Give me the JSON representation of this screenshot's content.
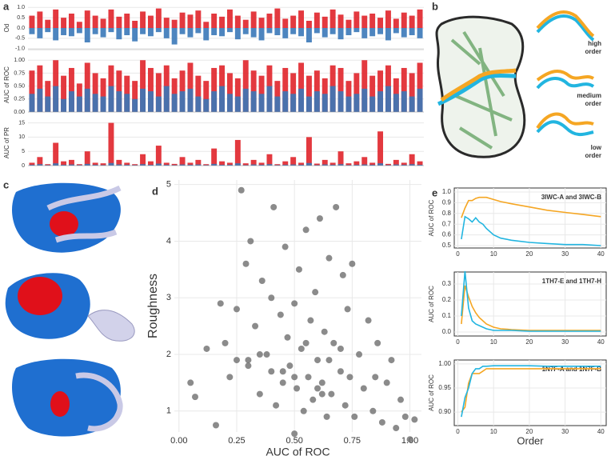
{
  "panel_labels": [
    "a",
    "b",
    "c",
    "d",
    "e"
  ],
  "panel_b": {
    "labels": [
      [
        "high",
        "order"
      ],
      [
        "medium",
        "order"
      ],
      [
        "low",
        "order"
      ]
    ]
  },
  "chart_data": [
    {
      "type": "bar",
      "ylabel": "Od",
      "ylim": [
        -1.05,
        1.05
      ],
      "yticks": [
        {
          "value": 1,
          "label": "1.0"
        },
        {
          "value": 0.5,
          "label": "0.5"
        },
        {
          "value": 0,
          "label": "0.0"
        },
        {
          "value": -0.5,
          "label": "-0.5"
        },
        {
          "value": -1,
          "label": "-1.0"
        }
      ],
      "grid": true,
      "series": [
        {
          "color": "#e0242a",
          "values": [
            0.6,
            0.8,
            0.4,
            0.9,
            0.5,
            0.7,
            0.3,
            0.85,
            0.6,
            0.45,
            0.9,
            0.55,
            0.7,
            0.35,
            0.8,
            0.6,
            0.95,
            0.5,
            0.4,
            0.75,
            0.65,
            0.85,
            0.3,
            0.7,
            0.55,
            0.9,
            0.6,
            0.4,
            0.8,
            0.5,
            0.7,
            0.95,
            0.45,
            0.6,
            0.85,
            0.35,
            0.75,
            0.55,
            0.9,
            0.65,
            0.4,
            0.8,
            0.6,
            0.7,
            0.5,
            0.85,
            0.45,
            0.75,
            0.6,
            0.9
          ]
        },
        {
          "color": "#3a78b8",
          "values": [
            -0.3,
            -0.5,
            -0.2,
            -0.6,
            -0.35,
            -0.4,
            -0.25,
            -0.7,
            -0.3,
            -0.45,
            -0.2,
            -0.55,
            -0.35,
            -0.65,
            -0.3,
            -0.4,
            -0.2,
            -0.5,
            -0.8,
            -0.3,
            -0.45,
            -0.25,
            -0.6,
            -0.35,
            -0.4,
            -0.2,
            -0.55,
            -0.3,
            -0.45,
            -0.6,
            -0.25,
            -0.35,
            -0.5,
            -0.3,
            -0.4,
            -0.7,
            -0.25,
            -0.45,
            -0.3,
            -0.55,
            -0.35,
            -0.2,
            -0.5,
            -0.4,
            -0.3,
            -0.6,
            -0.25,
            -0.45,
            -0.35,
            -0.5
          ]
        }
      ]
    },
    {
      "type": "bar",
      "ylabel": "AUC of ROC",
      "ylim": [
        0,
        1.05
      ],
      "yticks": [
        {
          "value": 0,
          "label": "0.00"
        },
        {
          "value": 0.25,
          "label": "0.25"
        },
        {
          "value": 0.5,
          "label": "0.50"
        },
        {
          "value": 0.75,
          "label": "0.75"
        },
        {
          "value": 1,
          "label": "1.00"
        }
      ],
      "grid": true,
      "series": [
        {
          "color": "#e0242a",
          "values": [
            0.8,
            0.9,
            0.6,
            1.0,
            0.7,
            0.85,
            0.55,
            0.95,
            0.75,
            0.65,
            0.9,
            0.8,
            0.7,
            0.6,
            1.0,
            0.85,
            0.75,
            0.9,
            0.65,
            0.8,
            0.95,
            0.7,
            0.6,
            0.85,
            0.9,
            0.75,
            0.65,
            1.0,
            0.8,
            0.7,
            0.9,
            0.6,
            0.85,
            0.75,
            0.95,
            0.7,
            0.8,
            0.65,
            0.9,
            0.85,
            0.6,
            0.75,
            1.0,
            0.7,
            0.8,
            0.9,
            0.65,
            0.85,
            0.75,
            0.95
          ]
        },
        {
          "color": "#3a78b8",
          "values": [
            0.35,
            0.45,
            0.3,
            0.5,
            0.25,
            0.4,
            0.3,
            0.45,
            0.35,
            0.3,
            0.5,
            0.4,
            0.35,
            0.25,
            0.45,
            0.4,
            0.3,
            0.5,
            0.35,
            0.4,
            0.45,
            0.3,
            0.25,
            0.4,
            0.5,
            0.35,
            0.3,
            0.45,
            0.4,
            0.35,
            0.5,
            0.3,
            0.4,
            0.35,
            0.45,
            0.3,
            0.4,
            0.35,
            0.5,
            0.4,
            0.3,
            0.35,
            0.45,
            0.3,
            0.4,
            0.5,
            0.35,
            0.4,
            0.3,
            0.45
          ]
        }
      ]
    },
    {
      "type": "bar",
      "ylabel": "AUC of PR",
      "ylim": [
        0,
        16
      ],
      "yticks": [
        0,
        5,
        10,
        15
      ],
      "grid": true,
      "series": [
        {
          "color": "#e0242a",
          "values": [
            1,
            3,
            0.5,
            8,
            1.5,
            2,
            0.5,
            5,
            1,
            0.8,
            15,
            2,
            1,
            0.5,
            4,
            1.5,
            7,
            1,
            0.6,
            3,
            1,
            2,
            0.5,
            6,
            1.5,
            1,
            9,
            0.8,
            2,
            1,
            4,
            0.5,
            1.5,
            3,
            1,
            10,
            0.7,
            2,
            1,
            5,
            0.8,
            1.5,
            3,
            1,
            12,
            0.6,
            2,
            1,
            4,
            1.5
          ]
        },
        {
          "color": "#3a78b8",
          "values": [
            0.3,
            0.5,
            0.2,
            0.8,
            0.3,
            0.4,
            0.2,
            0.6,
            0.3,
            0.2,
            0.9,
            0.4,
            0.3,
            0.2,
            0.5,
            0.3,
            0.7,
            0.3,
            0.2,
            0.4,
            0.3,
            0.4,
            0.2,
            0.6,
            0.3,
            0.3,
            0.8,
            0.2,
            0.4,
            0.3,
            0.5,
            0.2,
            0.3,
            0.4,
            0.3,
            0.9,
            0.2,
            0.4,
            0.3,
            0.5,
            0.2,
            0.3,
            0.4,
            0.3,
            0.8,
            0.2,
            0.4,
            0.3,
            0.5,
            0.3
          ]
        }
      ]
    },
    {
      "type": "scatter",
      "xlabel": "AUC of ROC",
      "ylabel": "Roughness",
      "xlim": [
        -0.02,
        1.05
      ],
      "ylim": [
        0.63,
        5.08
      ],
      "xticks": [
        {
          "value": 0,
          "label": "0.00"
        },
        {
          "value": 0.25,
          "label": "0.25"
        },
        {
          "value": 0.5,
          "label": "0.50"
        },
        {
          "value": 0.75,
          "label": "0.75"
        },
        {
          "value": 1,
          "label": "1.00"
        }
      ],
      "yticks": [
        1,
        2,
        3,
        4,
        5
      ],
      "grid": true,
      "color": "#6e6e6e",
      "x": [
        0.05,
        0.07,
        0.12,
        0.16,
        0.18,
        0.2,
        0.22,
        0.25,
        0.27,
        0.29,
        0.3,
        0.31,
        0.33,
        0.35,
        0.36,
        0.38,
        0.4,
        0.41,
        0.42,
        0.44,
        0.45,
        0.46,
        0.47,
        0.48,
        0.5,
        0.5,
        0.51,
        0.52,
        0.53,
        0.54,
        0.55,
        0.56,
        0.57,
        0.58,
        0.59,
        0.6,
        0.61,
        0.62,
        0.63,
        0.64,
        0.65,
        0.66,
        0.67,
        0.68,
        0.7,
        0.71,
        0.72,
        0.73,
        0.74,
        0.75,
        0.76,
        0.78,
        0.8,
        0.82,
        0.84,
        0.86,
        0.88,
        0.9,
        0.92,
        0.94,
        0.96,
        0.98,
        1.0,
        1.02,
        0.3,
        0.35,
        0.45,
        0.55,
        0.6,
        0.65,
        0.4,
        0.5,
        0.7,
        0.25,
        0.85,
        0.62
      ],
      "values": [
        1.5,
        1.25,
        2.1,
        0.75,
        2.9,
        2.2,
        1.6,
        2.8,
        4.9,
        3.6,
        1.9,
        4.0,
        2.5,
        1.3,
        3.3,
        2.0,
        1.7,
        4.6,
        1.1,
        2.7,
        1.5,
        3.9,
        2.3,
        1.8,
        0.6,
        2.9,
        1.4,
        3.5,
        2.1,
        1.0,
        4.2,
        1.6,
        2.6,
        1.2,
        3.1,
        1.9,
        4.4,
        1.5,
        2.4,
        0.9,
        3.7,
        1.3,
        2.2,
        4.6,
        1.7,
        3.4,
        1.1,
        2.8,
        1.6,
        3.6,
        0.9,
        2.0,
        1.4,
        2.6,
        1.0,
        2.2,
        0.8,
        1.5,
        1.9,
        0.7,
        1.2,
        0.9,
        0.5,
        0.85,
        1.8,
        2.0,
        1.7,
        2.2,
        1.4,
        1.9,
        3.0,
        1.6,
        2.1,
        1.9,
        1.6,
        1.3
      ]
    },
    {
      "type": "line",
      "title": "3IWC-A and 3IWC-B",
      "ylabel": "AUC of ROC",
      "xlim": [
        -1,
        41.5
      ],
      "ylim": [
        0.478,
        1.037
      ],
      "xticks": [
        0,
        10,
        20,
        30,
        40
      ],
      "yticks": [
        0.5,
        0.6,
        0.7,
        0.8,
        0.9,
        {
          "value": 1,
          "label": "1.0"
        }
      ],
      "grid": true,
      "x": [
        1,
        2,
        3,
        4,
        5,
        6,
        7,
        8,
        10,
        12,
        15,
        20,
        25,
        30,
        35,
        40
      ],
      "series": [
        {
          "color": "#f5a623",
          "values": [
            0.76,
            0.85,
            0.92,
            0.92,
            0.94,
            0.95,
            0.95,
            0.95,
            0.93,
            0.91,
            0.89,
            0.86,
            0.83,
            0.81,
            0.79,
            0.77
          ]
        },
        {
          "color": "#22b5e0",
          "values": [
            0.56,
            0.77,
            0.75,
            0.72,
            0.76,
            0.72,
            0.7,
            0.66,
            0.6,
            0.57,
            0.55,
            0.53,
            0.52,
            0.51,
            0.51,
            0.5
          ]
        }
      ]
    },
    {
      "type": "line",
      "title": "1TH7-E and 1TH7-H",
      "ylabel": "AUC of ROC",
      "xlim": [
        -1,
        41.5
      ],
      "ylim": [
        -0.025,
        0.375
      ],
      "xticks": [
        0,
        10,
        20,
        30,
        40
      ],
      "yticks": [
        {
          "value": 0,
          "label": "0.0"
        },
        0.1,
        0.2,
        0.3
      ],
      "grid": true,
      "x": [
        1,
        2,
        3,
        4,
        5,
        6,
        7,
        8,
        10,
        12,
        15,
        20,
        25,
        30,
        35,
        40
      ],
      "series": [
        {
          "color": "#f5a623",
          "values": [
            0.05,
            0.29,
            0.22,
            0.16,
            0.12,
            0.09,
            0.07,
            0.05,
            0.03,
            0.02,
            0.015,
            0.01,
            0.01,
            0.01,
            0.01,
            0.01
          ]
        },
        {
          "color": "#22b5e0",
          "values": [
            0.1,
            0.38,
            0.15,
            0.07,
            0.05,
            0.04,
            0.03,
            0.02,
            0.01,
            0.01,
            0.01,
            0.005,
            0.005,
            0.005,
            0.005,
            0.005
          ]
        }
      ]
    },
    {
      "type": "line",
      "title": "1N7F-A and 1N7F-B",
      "ylabel": "AUC of ROC",
      "xlabel": "Order",
      "xlim": [
        -1,
        41.5
      ],
      "ylim": [
        0.872,
        1.008
      ],
      "xticks": [
        0,
        10,
        20,
        30,
        40
      ],
      "yticks": [
        {
          "value": 0.9,
          "label": "0.90"
        },
        0.95,
        {
          "value": 1,
          "label": "1.00"
        }
      ],
      "grid": true,
      "x": [
        1,
        2,
        3,
        4,
        5,
        6,
        7,
        8,
        10,
        12,
        15,
        20,
        25,
        30,
        35,
        40
      ],
      "series": [
        {
          "color": "#f5a623",
          "values": [
            0.9,
            0.91,
            0.96,
            0.98,
            0.98,
            0.98,
            0.985,
            0.99,
            0.99,
            0.99,
            0.99,
            0.99,
            0.99,
            0.99,
            0.99,
            0.99
          ]
        },
        {
          "color": "#22b5e0",
          "values": [
            0.89,
            0.93,
            0.95,
            0.98,
            0.99,
            0.99,
            0.995,
            0.995,
            0.996,
            0.996,
            0.996,
            0.996,
            0.995,
            0.995,
            0.995,
            0.995
          ]
        }
      ]
    }
  ]
}
